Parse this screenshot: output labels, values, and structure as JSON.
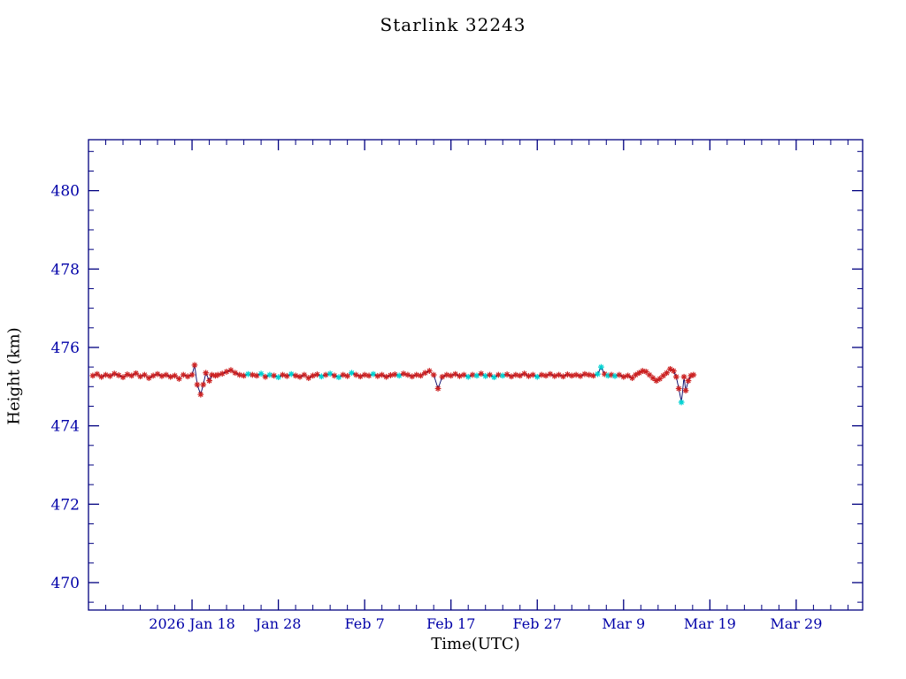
{
  "chart_data": {
    "type": "line",
    "title": "Starlink 32243",
    "xlabel": "Time(UTC)",
    "ylabel": "Height (km)",
    "xlim": [
      0,
      89.7
    ],
    "ylim": [
      469.3,
      481.3
    ],
    "x_ticks": {
      "values": [
        12,
        22,
        32,
        42,
        52,
        62,
        72,
        82
      ],
      "labels": [
        "2026 Jan 18",
        "Jan 28",
        "Feb  7",
        "Feb 17",
        "Feb 27",
        "Mar  9",
        "Mar 19",
        "Mar 29"
      ]
    },
    "y_ticks": {
      "values": [
        470,
        472,
        474,
        476,
        478,
        480
      ],
      "labels": [
        "470",
        "472",
        "474",
        "476",
        "478",
        "480"
      ]
    },
    "x_minor_step": 2,
    "y_minor_step": 0.5,
    "grid": false,
    "legend": "none",
    "colors": {
      "axis": "#000080",
      "text": "#0000A8",
      "line": "#000066",
      "marker_red": "#CC2222",
      "marker_cyan": "#00D2D2"
    },
    "series_note": "points are [days_since_2026-01-06, height_km, colorIndex(0=red asterisk,1=cyan asterisk)]",
    "points": [
      [
        0.5,
        475.28,
        0
      ],
      [
        1.0,
        475.32,
        0
      ],
      [
        1.5,
        475.25,
        0
      ],
      [
        2.0,
        475.3,
        0
      ],
      [
        2.5,
        475.27,
        0
      ],
      [
        3.0,
        475.33,
        0
      ],
      [
        3.5,
        475.29,
        0
      ],
      [
        4.0,
        475.24,
        0
      ],
      [
        4.5,
        475.31,
        0
      ],
      [
        5.0,
        475.28,
        0
      ],
      [
        5.5,
        475.34,
        0
      ],
      [
        6.0,
        475.26,
        0
      ],
      [
        6.5,
        475.3,
        0
      ],
      [
        7.0,
        475.22,
        0
      ],
      [
        7.5,
        475.28,
        0
      ],
      [
        8.0,
        475.32,
        0
      ],
      [
        8.5,
        475.27,
        0
      ],
      [
        9.0,
        475.3,
        0
      ],
      [
        9.5,
        475.25,
        0
      ],
      [
        10.0,
        475.28,
        0
      ],
      [
        10.5,
        475.2,
        0
      ],
      [
        11.0,
        475.3,
        0
      ],
      [
        11.5,
        475.26,
        0
      ],
      [
        12.0,
        475.3,
        0
      ],
      [
        12.3,
        475.55,
        0
      ],
      [
        12.6,
        475.05,
        0
      ],
      [
        13.0,
        474.8,
        0
      ],
      [
        13.3,
        475.05,
        0
      ],
      [
        13.6,
        475.35,
        0
      ],
      [
        14.0,
        475.15,
        0
      ],
      [
        14.3,
        475.3,
        0
      ],
      [
        14.7,
        475.28,
        0
      ],
      [
        15.0,
        475.3,
        0
      ],
      [
        15.5,
        475.33,
        0
      ],
      [
        16.0,
        475.38,
        0
      ],
      [
        16.5,
        475.42,
        0
      ],
      [
        17.0,
        475.35,
        0
      ],
      [
        17.5,
        475.3,
        0
      ],
      [
        18.0,
        475.28,
        0
      ],
      [
        18.5,
        475.32,
        1
      ],
      [
        19.0,
        475.3,
        0
      ],
      [
        19.5,
        475.28,
        0
      ],
      [
        20.0,
        475.33,
        1
      ],
      [
        20.5,
        475.25,
        0
      ],
      [
        21.0,
        475.3,
        1
      ],
      [
        21.5,
        475.28,
        0
      ],
      [
        22.0,
        475.24,
        1
      ],
      [
        22.5,
        475.3,
        0
      ],
      [
        23.0,
        475.27,
        0
      ],
      [
        23.5,
        475.32,
        1
      ],
      [
        24.0,
        475.28,
        0
      ],
      [
        24.5,
        475.25,
        0
      ],
      [
        25.0,
        475.3,
        0
      ],
      [
        25.5,
        475.22,
        0
      ],
      [
        26.0,
        475.28,
        0
      ],
      [
        26.5,
        475.31,
        0
      ],
      [
        27.0,
        475.26,
        1
      ],
      [
        27.5,
        475.3,
        0
      ],
      [
        28.0,
        475.33,
        1
      ],
      [
        28.5,
        475.28,
        0
      ],
      [
        29.0,
        475.24,
        1
      ],
      [
        29.5,
        475.3,
        0
      ],
      [
        30.0,
        475.27,
        0
      ],
      [
        30.5,
        475.35,
        1
      ],
      [
        31.0,
        475.3,
        0
      ],
      [
        31.5,
        475.26,
        0
      ],
      [
        32.0,
        475.3,
        0
      ],
      [
        32.5,
        475.28,
        0
      ],
      [
        33.0,
        475.32,
        1
      ],
      [
        33.5,
        475.27,
        0
      ],
      [
        34.0,
        475.3,
        0
      ],
      [
        34.5,
        475.25,
        0
      ],
      [
        35.0,
        475.29,
        0
      ],
      [
        35.5,
        475.31,
        0
      ],
      [
        36.0,
        475.28,
        1
      ],
      [
        36.5,
        475.33,
        0
      ],
      [
        37.0,
        475.3,
        0
      ],
      [
        37.5,
        475.26,
        0
      ],
      [
        38.0,
        475.3,
        0
      ],
      [
        38.5,
        475.28,
        0
      ],
      [
        39.0,
        475.35,
        0
      ],
      [
        39.5,
        475.4,
        0
      ],
      [
        40.0,
        475.3,
        0
      ],
      [
        40.5,
        474.95,
        0
      ],
      [
        41.0,
        475.25,
        0
      ],
      [
        41.5,
        475.3,
        0
      ],
      [
        42.0,
        475.28,
        0
      ],
      [
        42.5,
        475.32,
        0
      ],
      [
        43.0,
        475.27,
        0
      ],
      [
        43.5,
        475.3,
        0
      ],
      [
        44.0,
        475.25,
        1
      ],
      [
        44.5,
        475.3,
        0
      ],
      [
        45.0,
        475.28,
        1
      ],
      [
        45.5,
        475.33,
        0
      ],
      [
        46.0,
        475.27,
        1
      ],
      [
        46.5,
        475.3,
        0
      ],
      [
        47.0,
        475.24,
        1
      ],
      [
        47.5,
        475.3,
        0
      ],
      [
        48.0,
        475.28,
        1
      ],
      [
        48.5,
        475.31,
        0
      ],
      [
        49.0,
        475.26,
        0
      ],
      [
        49.5,
        475.3,
        0
      ],
      [
        50.0,
        475.28,
        0
      ],
      [
        50.5,
        475.33,
        0
      ],
      [
        51.0,
        475.27,
        0
      ],
      [
        51.5,
        475.3,
        0
      ],
      [
        52.0,
        475.25,
        1
      ],
      [
        52.5,
        475.3,
        0
      ],
      [
        53.0,
        475.28,
        0
      ],
      [
        53.5,
        475.32,
        0
      ],
      [
        54.0,
        475.27,
        0
      ],
      [
        54.5,
        475.3,
        0
      ],
      [
        55.0,
        475.26,
        0
      ],
      [
        55.5,
        475.31,
        0
      ],
      [
        56.0,
        475.28,
        0
      ],
      [
        56.5,
        475.3,
        0
      ],
      [
        57.0,
        475.27,
        0
      ],
      [
        57.5,
        475.32,
        0
      ],
      [
        58.0,
        475.3,
        0
      ],
      [
        58.5,
        475.28,
        0
      ],
      [
        59.0,
        475.32,
        1
      ],
      [
        59.4,
        475.5,
        1
      ],
      [
        59.8,
        475.32,
        0
      ],
      [
        60.2,
        475.28,
        1
      ],
      [
        60.6,
        475.3,
        0
      ],
      [
        61.0,
        475.27,
        1
      ],
      [
        61.5,
        475.3,
        0
      ],
      [
        62.0,
        475.25,
        0
      ],
      [
        62.5,
        475.28,
        0
      ],
      [
        63.0,
        475.22,
        0
      ],
      [
        63.4,
        475.3,
        0
      ],
      [
        63.8,
        475.35,
        0
      ],
      [
        64.2,
        475.4,
        0
      ],
      [
        64.6,
        475.38,
        0
      ],
      [
        65.0,
        475.3,
        0
      ],
      [
        65.4,
        475.22,
        0
      ],
      [
        65.8,
        475.15,
        0
      ],
      [
        66.2,
        475.2,
        0
      ],
      [
        66.6,
        475.28,
        0
      ],
      [
        67.0,
        475.35,
        0
      ],
      [
        67.4,
        475.45,
        0
      ],
      [
        67.8,
        475.4,
        0
      ],
      [
        68.1,
        475.25,
        0
      ],
      [
        68.4,
        474.95,
        0
      ],
      [
        68.7,
        474.6,
        1
      ],
      [
        69.0,
        475.25,
        0
      ],
      [
        69.2,
        474.9,
        0
      ],
      [
        69.5,
        475.15,
        0
      ],
      [
        69.8,
        475.28,
        0
      ],
      [
        70.1,
        475.3,
        0
      ]
    ]
  },
  "labels": {
    "title": "Starlink 32243",
    "xlabel": "Time(UTC)",
    "ylabel": "Height (km)"
  }
}
